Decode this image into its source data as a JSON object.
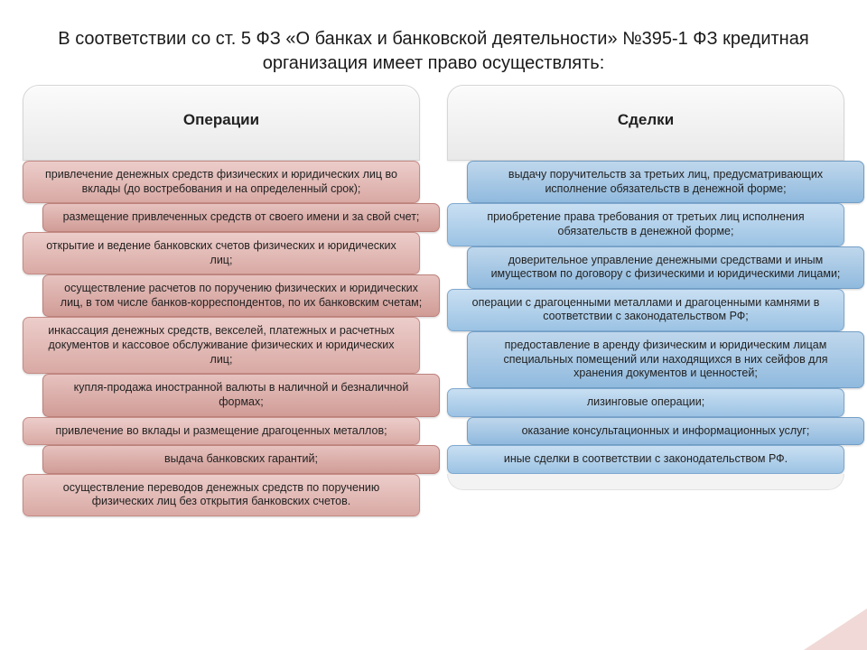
{
  "slide": {
    "title": "В соответствии со ст. 5  ФЗ «О банках и банковской деятельности» №395-1 ФЗ кредитная организация имеет право осуществлять:",
    "background_color": "#ffffff",
    "title_fontsize": 20,
    "title_color": "#1a1a1a"
  },
  "columns": [
    {
      "key": "operations",
      "heading": "Операции",
      "panel_gradient": [
        "#fbfbfb",
        "#e9e9e9"
      ],
      "item_fill_a": [
        "#eccdca",
        "#d9a9a4"
      ],
      "item_fill_b": [
        "#e6c2bf",
        "#d19c96"
      ],
      "item_border": "#c68c86",
      "item_fontsize": 12.5,
      "items": [
        "привлечение денежных средств физических и юридических лиц во вклады (до востребования и на определенный срок);",
        "размещение привлеченных средств от своего имени и за свой счет;",
        "открытие и ведение банковских счетов физических и юридических лиц;",
        "осуществление расчетов по поручению физических и юридических лиц, в том числе банков-корреспондентов, по их банковским счетам;",
        "инкассация денежных средств, векселей, платежных и расчетных документов и кассовое обслуживание физических и юридических лиц;",
        "купля-продажа иностранной валюты в наличной и безналичной формах;",
        "привлечение во вклады и размещение драгоценных металлов;",
        "выдача банковских гарантий;",
        "осуществление переводов денежных средств по поручению физических лиц без открытия банковских счетов."
      ]
    },
    {
      "key": "deals",
      "heading": "Сделки",
      "panel_gradient": [
        "#fbfbfb",
        "#e9e9e9"
      ],
      "item_fill_a": [
        "#c9dff2",
        "#9cc3e4"
      ],
      "item_fill_b": [
        "#bfd7ec",
        "#90bade"
      ],
      "item_border": "#7fa9cf",
      "item_fontsize": 12.5,
      "items": [
        "выдачу поручительств за третьих лиц, предусматривающих исполнение обязательств в денежной форме;",
        "приобретение права требования от третьих лиц исполнения обязательств в денежной форме;",
        "доверительное управление денежными средствами и иным имуществом по договору с физическими и юридическими лицами;",
        "операции с драгоценными металлами и драгоценными камнями в соответствии с законодательством РФ;",
        "предоставление в аренду физическим и юридическим лицам специальных помещений или находящихся в них сейфов для хранения документов и ценностей;",
        "лизинговые операции;",
        "оказание консультационных и информационных услуг;",
        "иные сделки в соответствии с законодательством РФ."
      ]
    }
  ],
  "decoration": {
    "corner_fill": "#f0d9d6",
    "corner_border": "#e3b8b3"
  }
}
